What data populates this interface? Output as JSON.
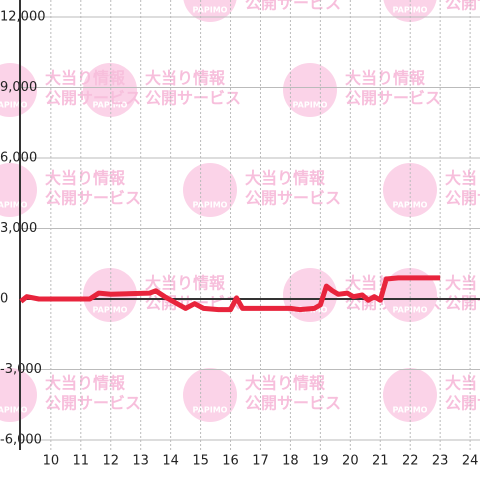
{
  "chart_data": {
    "type": "line",
    "watermark": [
      "PAPIMO",
      "大当り情報",
      "公開サービス"
    ],
    "x": [
      9.0,
      9.2,
      9.6,
      11.3,
      11.6,
      12.0,
      13.3,
      13.5,
      13.8,
      14.5,
      14.8,
      15.1,
      15.6,
      16.0,
      16.2,
      16.4,
      18.0,
      18.3,
      18.8,
      19.0,
      19.2,
      19.4,
      19.6,
      19.9,
      20.1,
      20.4,
      20.6,
      20.8,
      21.0,
      21.2,
      21.6,
      23.0
    ],
    "series": [
      {
        "color": "#e8243c",
        "values": [
          -100,
          100,
          0,
          0,
          250,
          200,
          250,
          350,
          100,
          -400,
          -200,
          -400,
          -450,
          -450,
          50,
          -400,
          -400,
          -450,
          -400,
          -250,
          550,
          350,
          200,
          250,
          100,
          170,
          -50,
          100,
          -50,
          850,
          900,
          900
        ]
      }
    ],
    "xlim": [
      8.97,
      24.33
    ],
    "xticks": [
      10,
      11,
      12,
      13,
      14,
      15,
      16,
      17,
      18,
      19,
      20,
      21,
      22,
      23,
      24
    ],
    "ylim": [
      -6000,
      12000
    ],
    "yticks": [
      {
        "value": -6000,
        "label": "-6,000"
      },
      {
        "value": -3000,
        "label": "-3,000"
      },
      0,
      {
        "value": 3000,
        "label": "3,000"
      },
      {
        "value": 6000,
        "label": "6,000"
      },
      {
        "value": 9000,
        "label": "9,000"
      },
      {
        "value": 12000,
        "label": "12,000"
      }
    ],
    "grid": true
  }
}
